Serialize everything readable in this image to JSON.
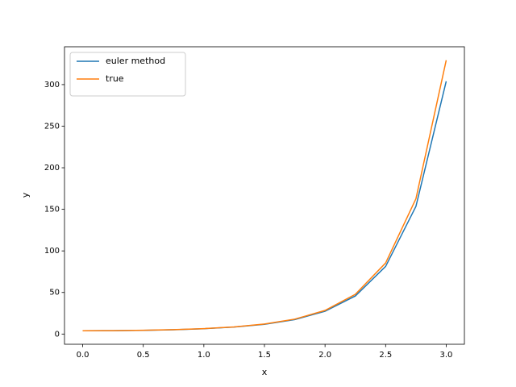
{
  "chart_data": {
    "type": "line",
    "x_label": "x",
    "y_label": "y",
    "x": [
      0,
      0.25,
      0.5,
      0.75,
      1.0,
      1.25,
      1.5,
      1.75,
      2.0,
      2.25,
      2.5,
      2.75,
      3.0
    ],
    "series": [
      {
        "name": "euler method",
        "color": "#1f77b4",
        "values": [
          4,
          4.1,
          4.48,
          5.2,
          6.42,
          8.42,
          11.75,
          17.4,
          27.4,
          45.8,
          81.3,
          153.5,
          304
        ]
      },
      {
        "name": "true",
        "color": "#ff7f0e",
        "values": [
          4,
          4.12,
          4.52,
          5.27,
          6.53,
          8.6,
          12.05,
          17.94,
          28.4,
          47.8,
          85.5,
          162.7,
          329.3
        ]
      }
    ],
    "xlim": [
      -0.15,
      3.15
    ],
    "ylim": [
      -12.3,
      345.5
    ],
    "xticks": [
      0.0,
      0.5,
      1.0,
      1.5,
      2.0,
      2.5,
      3.0
    ],
    "yticks": [
      0,
      50,
      100,
      150,
      200,
      250,
      300
    ],
    "legend": "upper left",
    "grid": false
  }
}
